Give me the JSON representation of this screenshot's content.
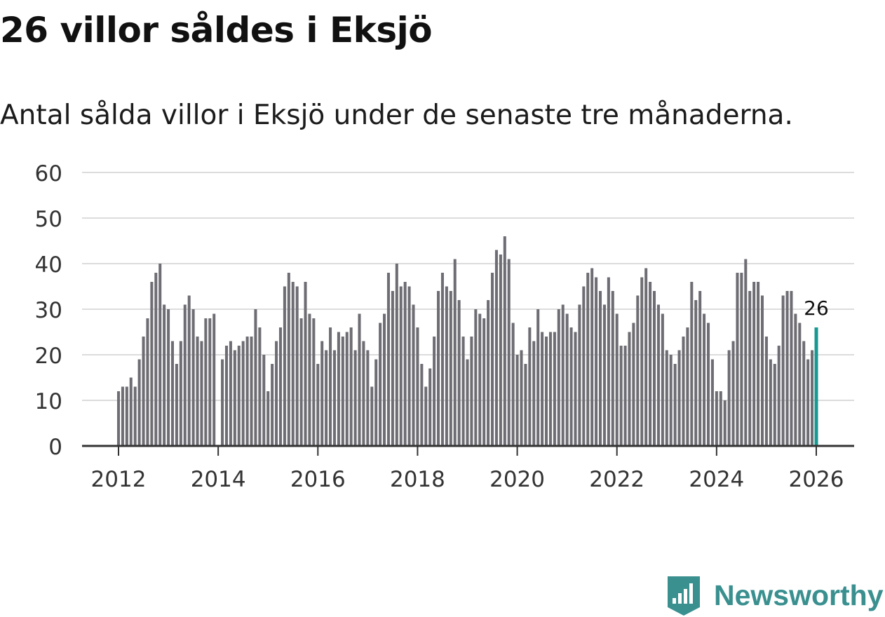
{
  "title": "26 villor såldes i Eksjö",
  "subtitle": "Antal sålda villor i Eksjö under de senaste tre månaderna.",
  "brand": {
    "name": "Newsworthy",
    "icon": "newsworthy-logo-icon"
  },
  "colors": {
    "bar": "#6e6d73",
    "highlight": "#169a91",
    "grid": "#dcdcdc",
    "axis": "#333333",
    "brand": "#3a8f8f"
  },
  "chart_data": {
    "type": "bar",
    "title": "26 villor såldes i Eksjö",
    "subtitle": "Antal sålda villor i Eksjö under de senaste tre månaderna.",
    "xlabel": "",
    "ylabel": "",
    "ylim": [
      0,
      60
    ],
    "yticks": [
      0,
      10,
      20,
      30,
      40,
      50,
      60
    ],
    "xticks": [
      2012,
      2014,
      2016,
      2018,
      2020,
      2022,
      2024,
      2026
    ],
    "xtick_labels": [
      "2012",
      "2014",
      "2016",
      "2018",
      "2020",
      "2022",
      "2024",
      "2026"
    ],
    "grid": true,
    "start": {
      "year": 2012,
      "month": 1
    },
    "frequency": "monthly",
    "highlight": {
      "index": 168,
      "label": "26"
    },
    "series": [
      {
        "name": "Antal sålda villor (rullande 3 månader)",
        "values": [
          12,
          13,
          13,
          15,
          13,
          19,
          24,
          28,
          36,
          38,
          40,
          31,
          30,
          23,
          18,
          23,
          31,
          33,
          30,
          24,
          23,
          28,
          28,
          29,
          0,
          19,
          22,
          23,
          21,
          22,
          23,
          24,
          24,
          30,
          26,
          20,
          12,
          18,
          23,
          26,
          35,
          38,
          36,
          35,
          28,
          36,
          29,
          28,
          18,
          23,
          21,
          26,
          21,
          25,
          24,
          25,
          26,
          21,
          29,
          23,
          21,
          13,
          19,
          27,
          29,
          38,
          34,
          40,
          35,
          36,
          35,
          31,
          26,
          18,
          13,
          17,
          24,
          34,
          38,
          35,
          34,
          41,
          32,
          24,
          19,
          24,
          30,
          29,
          28,
          32,
          38,
          43,
          42,
          46,
          41,
          27,
          20,
          21,
          18,
          26,
          23,
          30,
          25,
          24,
          25,
          25,
          30,
          31,
          29,
          26,
          25,
          31,
          35,
          38,
          39,
          37,
          34,
          31,
          37,
          34,
          29,
          22,
          22,
          25,
          27,
          33,
          37,
          39,
          36,
          34,
          31,
          29,
          21,
          20,
          18,
          21,
          24,
          26,
          36,
          32,
          34,
          29,
          27,
          19,
          12,
          12,
          10,
          21,
          23,
          38,
          38,
          41,
          34,
          36,
          36,
          33,
          24,
          19,
          18,
          22,
          33,
          34,
          34,
          29,
          27,
          23,
          19,
          21,
          26
        ]
      }
    ]
  }
}
